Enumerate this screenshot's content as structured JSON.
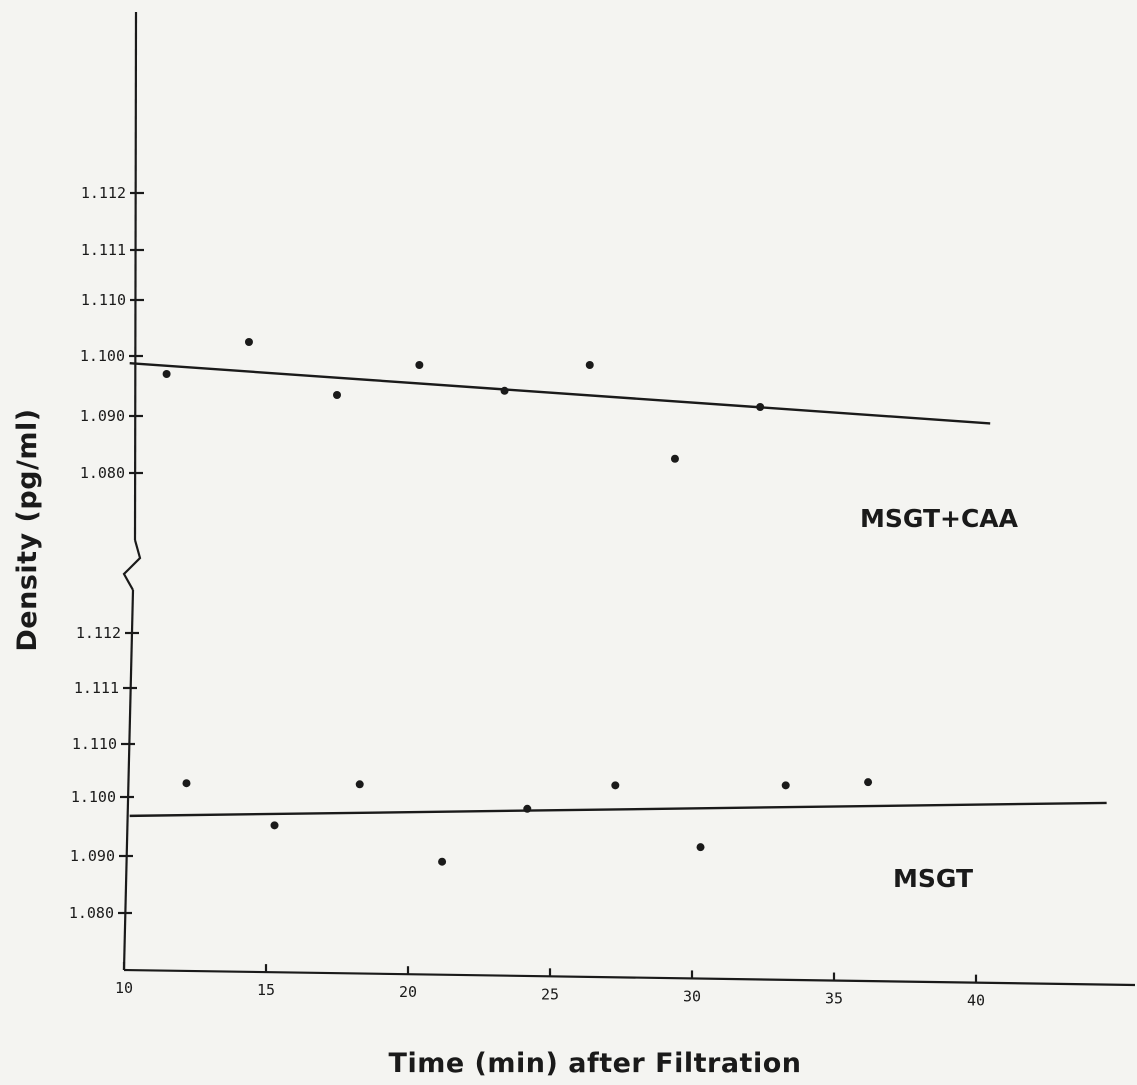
{
  "chart_data": {
    "type": "scatter",
    "xlabel": "Time (min) after Filtration",
    "ylabel": "Density (pg/ml)",
    "xlim": [
      10,
      45
    ],
    "x_ticks": [
      "10",
      "15",
      "20",
      "25",
      "30",
      "35",
      "40"
    ],
    "y_ticks": [
      "1.080",
      "1.090",
      "1.100",
      "1.110",
      "1.111",
      "1.112"
    ],
    "axis_break": true,
    "panels": [
      {
        "name": "MSGT+CAA",
        "points": [
          {
            "x": 11.5,
            "y": 1.097
          },
          {
            "x": 14.4,
            "y": 1.1025
          },
          {
            "x": 17.5,
            "y": 1.0935
          },
          {
            "x": 20.4,
            "y": 1.0985
          },
          {
            "x": 23.4,
            "y": 1.0942
          },
          {
            "x": 26.4,
            "y": 1.0985
          },
          {
            "x": 29.4,
            "y": 1.0825
          },
          {
            "x": 32.4,
            "y": 1.0915
          }
        ],
        "fit": {
          "x": [
            10.2,
            40.5
          ],
          "y": [
            1.0988,
            1.0887
          ]
        }
      },
      {
        "name": "MSGT",
        "points": [
          {
            "x": 12.2,
            "y": 1.1026
          },
          {
            "x": 15.3,
            "y": 1.0952
          },
          {
            "x": 18.3,
            "y": 1.1024
          },
          {
            "x": 21.2,
            "y": 1.089
          },
          {
            "x": 24.2,
            "y": 1.098
          },
          {
            "x": 27.3,
            "y": 1.1022
          },
          {
            "x": 30.3,
            "y": 1.0915
          },
          {
            "x": 33.3,
            "y": 1.1022
          },
          {
            "x": 36.2,
            "y": 1.1028
          }
        ],
        "fit": {
          "x": [
            10.2,
            44.6
          ],
          "y": [
            1.0968,
            1.099
          ]
        }
      }
    ]
  }
}
